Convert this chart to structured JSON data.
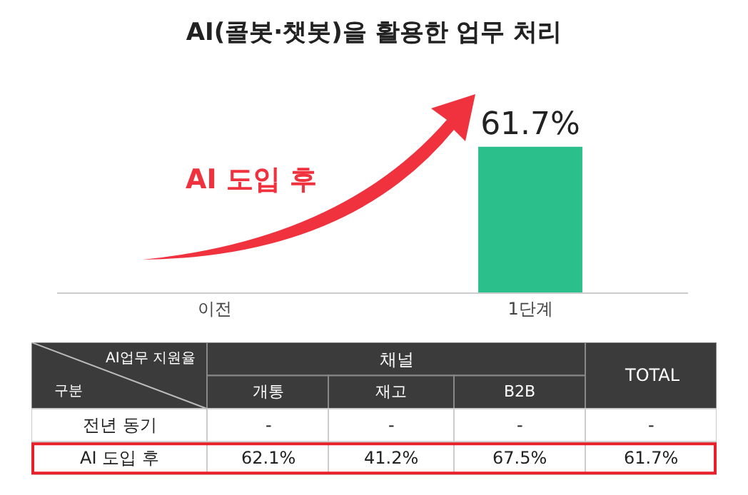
{
  "chart_data": [
    {
      "type": "bar",
      "title": "AI(콜봇·챗봇)을 활용한 업무 처리",
      "categories": [
        "이전",
        "1단계"
      ],
      "values": [
        null,
        61.7
      ],
      "value_labels": [
        null,
        "61.7%"
      ],
      "color": "#2bbf8c",
      "tick_labels": "x",
      "annotations": [
        "AI 도입 후"
      ]
    },
    {
      "type": "heatmap",
      "categories": [
        "개통",
        "재고",
        "B2B",
        "TOTAL"
      ],
      "y_categories": [
        "전년 동기",
        "AI 도입 후"
      ],
      "cells": [
        [
          null,
          null,
          null,
          null
        ],
        [
          62.1,
          41.2,
          67.5,
          61.7
        ]
      ],
      "cell_labels": [
        [
          "-",
          "-",
          "-",
          "-"
        ],
        [
          "62.1%",
          "41.2%",
          "67.5%",
          "61.7%"
        ]
      ],
      "annotations": [
        "AI업무 지원율",
        "구분",
        "채널"
      ]
    }
  ]
}
